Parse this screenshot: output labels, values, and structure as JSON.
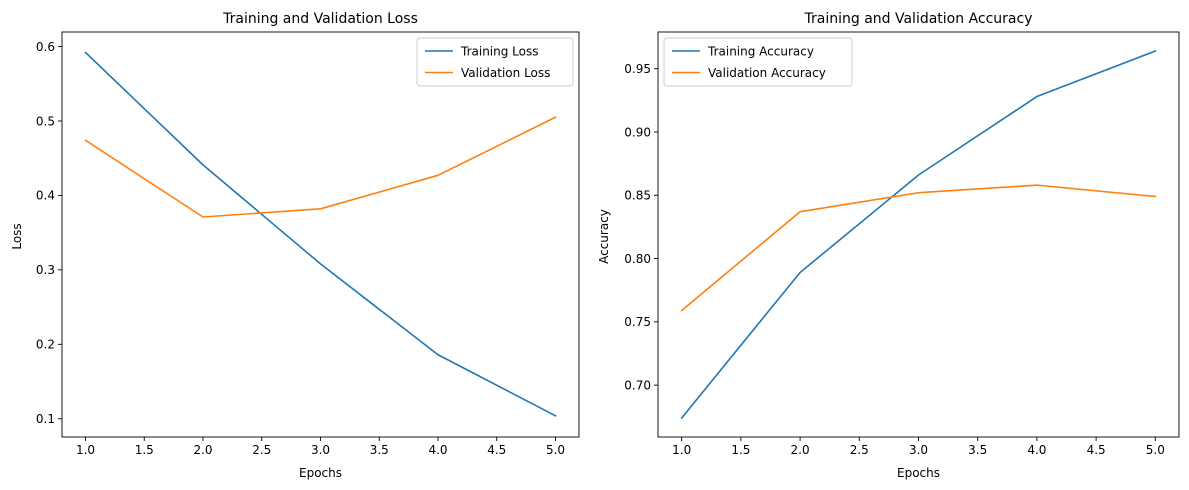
{
  "colors": {
    "series_1": "#1f77b4",
    "series_2": "#ff7f0e",
    "axes": "#000000",
    "legend_border": "#cccccc"
  },
  "chart_data": [
    {
      "type": "line",
      "title": "Training and Validation Loss",
      "xlabel": "Epochs",
      "ylabel": "Loss",
      "x": [
        1,
        2,
        3,
        4,
        5
      ],
      "xlim": [
        0.8,
        5.2
      ],
      "ylim": [
        0.0755,
        0.6195
      ],
      "xticks": [
        "1.0",
        "1.5",
        "2.0",
        "2.5",
        "3.0",
        "3.5",
        "4.0",
        "4.5",
        "5.0"
      ],
      "yticks": [
        "0.1",
        "0.2",
        "0.3",
        "0.4",
        "0.5",
        "0.6"
      ],
      "grid": false,
      "legend_position": "upper right",
      "series": [
        {
          "name": "Training Loss",
          "color": "#1f77b4",
          "values": [
            0.592,
            0.441,
            0.308,
            0.186,
            0.104
          ]
        },
        {
          "name": "Validation Loss",
          "color": "#ff7f0e",
          "values": [
            0.474,
            0.371,
            0.382,
            0.427,
            0.505
          ]
        }
      ]
    },
    {
      "type": "line",
      "title": "Training and Validation Accuracy",
      "xlabel": "Epochs",
      "ylabel": "Accuracy",
      "x": [
        1,
        2,
        3,
        4,
        5
      ],
      "xlim": [
        0.8,
        5.2
      ],
      "ylim": [
        0.659,
        0.979
      ],
      "xticks": [
        "1.0",
        "1.5",
        "2.0",
        "2.5",
        "3.0",
        "3.5",
        "4.0",
        "4.5",
        "5.0"
      ],
      "yticks": [
        "0.70",
        "0.75",
        "0.80",
        "0.85",
        "0.90",
        "0.95"
      ],
      "grid": false,
      "legend_position": "upper left",
      "series": [
        {
          "name": "Training Accuracy",
          "color": "#1f77b4",
          "values": [
            0.674,
            0.789,
            0.866,
            0.928,
            0.964
          ]
        },
        {
          "name": "Validation Accuracy",
          "color": "#ff7f0e",
          "values": [
            0.759,
            0.837,
            0.852,
            0.858,
            0.849
          ]
        }
      ]
    }
  ]
}
